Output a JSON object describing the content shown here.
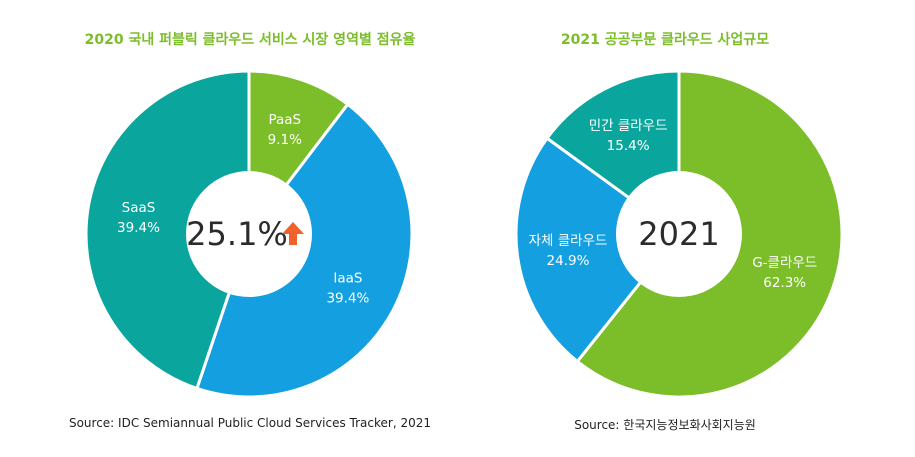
{
  "chart_data": [
    {
      "type": "pie",
      "variant": "donut",
      "title": "2020 국내 퍼블릭 클라우드 서비스 시장 영역별 점유율",
      "center_label": "25.1%",
      "center_icon": "up-arrow-icon",
      "categories": [
        "PaaS",
        "IaaS",
        "SaaS"
      ],
      "values": [
        9.1,
        39.4,
        39.4
      ],
      "value_labels": [
        "9.1%",
        "39.4%",
        "39.4%"
      ],
      "colors": [
        "#7cbd2a",
        "#139fe0",
        "#0aa59c"
      ],
      "source": "Source: IDC Semiannual Public Cloud Services Tracker, 2021"
    },
    {
      "type": "pie",
      "variant": "donut",
      "title": "2021 공공부문 클라우드 사업규모",
      "center_label": "2021",
      "categories": [
        "G-클라우드",
        "자체 클라우드",
        "민간 클라우드"
      ],
      "values": [
        62.3,
        24.9,
        15.4
      ],
      "value_labels": [
        "62.3%",
        "24.9%",
        "15.4%"
      ],
      "colors": [
        "#7cbd2a",
        "#139fe0",
        "#0aa59c"
      ],
      "source": "Source: 한국지능정보화사회지능원"
    }
  ],
  "accent_color": "#f0622a"
}
